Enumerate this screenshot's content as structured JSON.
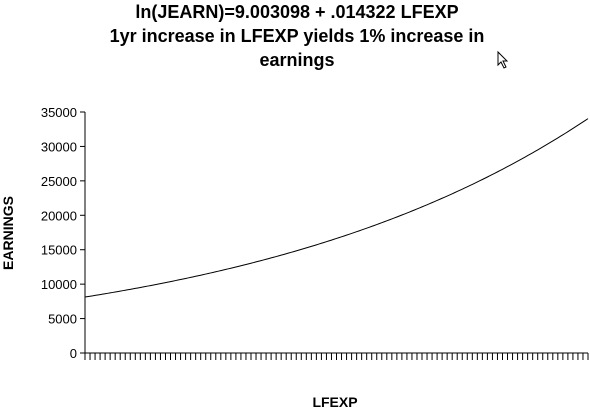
{
  "chart_data": {
    "type": "line",
    "title_lines": [
      "ln(JEARN)=9.003098 + .014322 LFEXP",
      "1yr increase in LFEXP yields 1% increase in",
      "earnings"
    ],
    "xlabel": "LFEXP",
    "ylabel": "EARNINGS",
    "ylim": [
      0,
      35000
    ],
    "yticks": [
      {
        "value": 0,
        "label": "0"
      },
      {
        "value": 5000,
        "label": "5000"
      },
      {
        "value": 10000,
        "label": "10000"
      },
      {
        "value": 15000,
        "label": "15000"
      },
      {
        "value": 20000,
        "label": "20000"
      },
      {
        "value": 25000,
        "label": "25000"
      },
      {
        "value": 30000,
        "label": "30000"
      },
      {
        "value": 35000,
        "label": "35000"
      }
    ],
    "intercept": 9.003098,
    "slope": 0.014322,
    "xlim": [
      0,
      100
    ],
    "grid": false,
    "legend": "none",
    "line_color": "#000000"
  },
  "cursor": {
    "icon": "arrow-cursor-icon"
  }
}
